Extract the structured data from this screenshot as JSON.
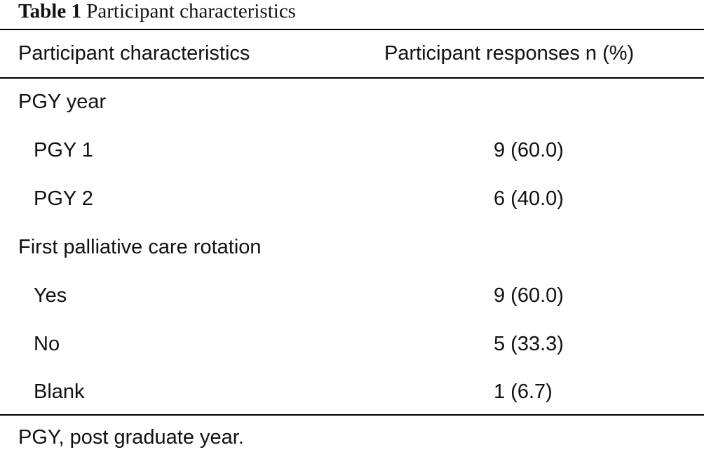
{
  "table": {
    "caption_label": "Table 1",
    "caption_title": "Participant characteristics",
    "columns": [
      "Participant characteristics",
      "Participant responses n (%)"
    ],
    "rows": [
      {
        "label": "PGY year",
        "value": ""
      },
      {
        "label": "PGY 1",
        "value": "9 (60.0)"
      },
      {
        "label": "PGY 2",
        "value": "6 (40.0)"
      },
      {
        "label": "First palliative care rotation",
        "value": ""
      },
      {
        "label": "Yes",
        "value": "9 (60.0)"
      },
      {
        "label": "No",
        "value": "5 (33.3)"
      },
      {
        "label": "Blank",
        "value": "1 (6.7)"
      }
    ],
    "footnote": "PGY, post graduate year."
  }
}
